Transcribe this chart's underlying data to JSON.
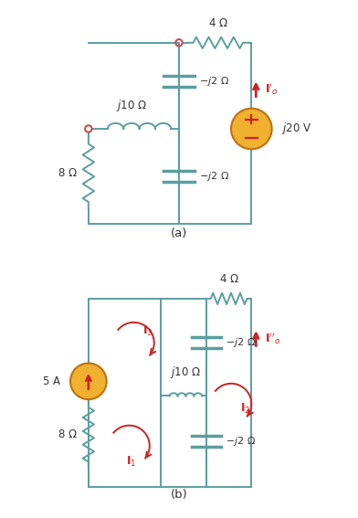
{
  "bg_color": "#ffffff",
  "wire_color": "#5a9ea0",
  "resistor_color": "#5a9ea0",
  "inductor_color": "#5a9ea0",
  "capacitor_color": "#5a9ea0",
  "source_color": "#f0b030",
  "arrow_color": "#cc2222",
  "text_color": "#333333",
  "fig_width": 3.92,
  "fig_height": 5.67
}
